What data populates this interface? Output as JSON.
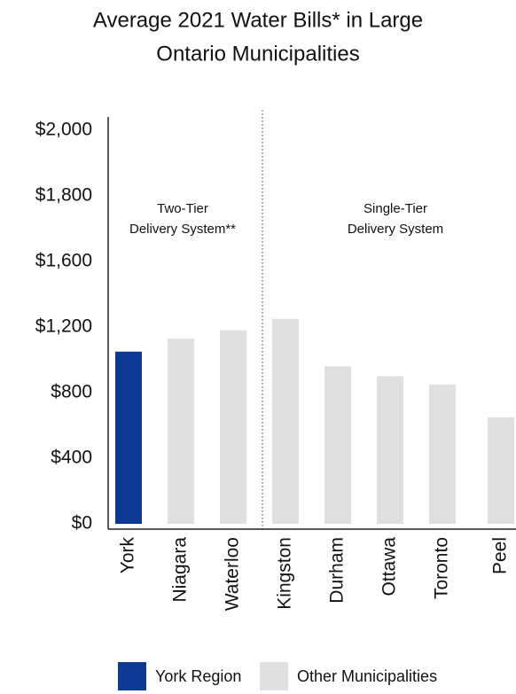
{
  "chart_data": {
    "type": "bar",
    "title": [
      "Average 2021 Water Bills* in Large",
      "Ontario Municipalities"
    ],
    "categories": [
      "York",
      "Niagara",
      "Waterloo",
      "Kingston",
      "Durham",
      "Ottawa",
      "Toronto",
      "Peel"
    ],
    "values": [
      1050,
      1130,
      1180,
      1250,
      960,
      900,
      850,
      650
    ],
    "colors": [
      "#0b3994",
      "#e0e0e0",
      "#e0e0e0",
      "#e0e0e0",
      "#e0e0e0",
      "#e0e0e0",
      "#e0e0e0",
      "#e0e0e0"
    ],
    "ylim": [
      0,
      2000
    ],
    "yticks": [
      {
        "value": 0,
        "label": "$0"
      },
      {
        "value": 400,
        "label": "$400"
      },
      {
        "value": 800,
        "label": "$800"
      },
      {
        "value": 1200,
        "label": "$1,200"
      },
      {
        "value": 1600,
        "label": "$1,600"
      },
      {
        "value": 1800,
        "label": "$1,800"
      },
      {
        "value": 2000,
        "label": "$2,000"
      }
    ],
    "annotations": [
      {
        "lines": [
          "Two-Tier",
          "Delivery System**"
        ]
      },
      {
        "lines": [
          "Single-Tier",
          "Delivery System"
        ]
      }
    ],
    "legend": [
      {
        "label": "York Region",
        "color": "#0b3994"
      },
      {
        "label": "Other Municipalities",
        "color": "#e0e0e0"
      }
    ]
  }
}
